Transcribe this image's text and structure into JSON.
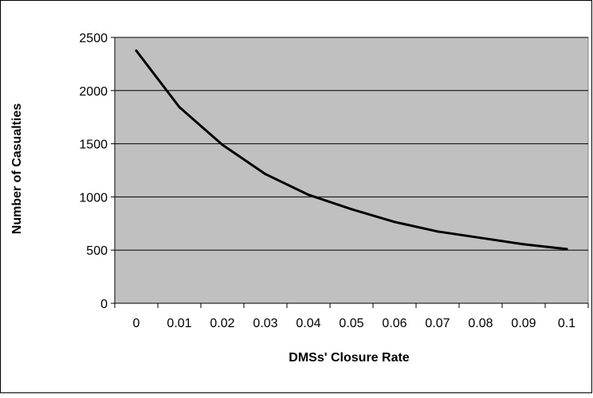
{
  "chart_data": {
    "type": "line",
    "title": "",
    "xlabel": "DMSs' Closure Rate",
    "ylabel": "Number of Casualties",
    "categories": [
      "0",
      "0.01",
      "0.02",
      "0.03",
      "0.04",
      "0.05",
      "0.06",
      "0.07",
      "0.08",
      "0.09",
      "0.1"
    ],
    "series": [
      {
        "values": [
          2375,
          1845,
          1490,
          1215,
          1020,
          885,
          765,
          675,
          615,
          555,
          510
        ]
      }
    ],
    "ylim": [
      0,
      2500
    ],
    "yticks": [
      "0",
      "500",
      "1000",
      "1500",
      "2000",
      "2500"
    ],
    "grid": "horizontal",
    "legend": "none",
    "colors": {
      "plot_background": "#c0c0c0",
      "gridline": "#000000",
      "line": "#000000",
      "frame": "#000000"
    }
  }
}
